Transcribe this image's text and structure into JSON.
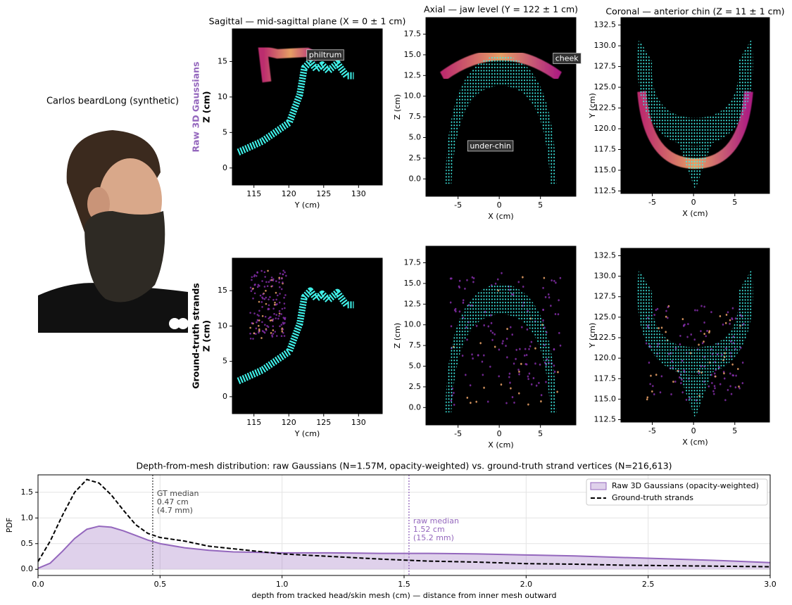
{
  "caption": "Carlos beardLong (synthetic)",
  "chart_data": [
    {
      "type": "density",
      "title": "Sagittal — mid-sagittal plane (X = 0 ± 1 cm)",
      "row_label": "Raw 3D Gaussians",
      "row_color": "#9467bd",
      "xlabel": "Y (cm)",
      "ylabel": "Z (cm)",
      "xlim": [
        111.9,
        133.4
      ],
      "ylim": [
        -2.4,
        19.6
      ],
      "xticks": [
        115,
        120,
        125,
        130
      ],
      "yticks": [
        0,
        5,
        10,
        15
      ],
      "annotations": [
        "philtrum"
      ]
    },
    {
      "type": "density",
      "title": "Axial — jaw level (Y = 122 ± 1 cm)",
      "xlabel": "X (cm)",
      "ylabel": "Z (cm)",
      "xlim": [
        -8.9,
        9.3
      ],
      "ylim": [
        -2.1,
        19.5
      ],
      "xticks": [
        -5,
        0,
        5
      ],
      "yticks": [
        {
          "value": 0,
          "label": "0.0"
        },
        2.5,
        {
          "value": 5,
          "label": "5.0"
        },
        7.5,
        {
          "value": 10,
          "label": "10.0"
        },
        12.5,
        {
          "value": 15,
          "label": "15.0"
        },
        17.5
      ],
      "annotations": [
        "cheek",
        "under-chin"
      ]
    },
    {
      "type": "density",
      "title": "Coronal — anterior chin (Z = 11 ± 1 cm)",
      "xlabel": "X (cm)",
      "ylabel": "Y (cm)",
      "xlim": [
        -8.8,
        9.2
      ],
      "ylim": [
        112.2,
        133.4
      ],
      "xticks": [
        -5,
        0,
        5
      ],
      "yticks": [
        112.5,
        {
          "value": 115,
          "label": "115.0"
        },
        117.5,
        {
          "value": 120,
          "label": "120.0"
        },
        122.5,
        {
          "value": 125,
          "label": "125.0"
        },
        127.5,
        {
          "value": 130,
          "label": "130.0"
        },
        132.5
      ]
    },
    {
      "type": "density",
      "row_label": "Ground-truth strands",
      "row_color": "#000000",
      "xlabel": "Y (cm)",
      "ylabel": "Z (cm)",
      "xlim": [
        111.9,
        133.4
      ],
      "ylim": [
        -2.4,
        19.6
      ],
      "xticks": [
        115,
        120,
        125,
        130
      ],
      "yticks": [
        0,
        5,
        10,
        15
      ]
    },
    {
      "type": "density",
      "xlabel": "X (cm)",
      "ylabel": "Z (cm)",
      "xlim": [
        -8.9,
        9.3
      ],
      "ylim": [
        -2.1,
        19.5
      ],
      "xticks": [
        -5,
        0,
        5
      ],
      "yticks": [
        {
          "value": 0,
          "label": "0.0"
        },
        2.5,
        {
          "value": 5,
          "label": "5.0"
        },
        7.5,
        {
          "value": 10,
          "label": "10.0"
        },
        12.5,
        {
          "value": 15,
          "label": "15.0"
        },
        17.5
      ]
    },
    {
      "type": "density",
      "xlabel": "X (cm)",
      "ylabel": "Y (cm)",
      "xlim": [
        -8.8,
        9.2
      ],
      "ylim": [
        112.2,
        133.4
      ],
      "xticks": [
        -5,
        0,
        5
      ],
      "yticks": [
        112.5,
        {
          "value": 115,
          "label": "115.0"
        },
        117.5,
        {
          "value": 120,
          "label": "120.0"
        },
        122.5,
        {
          "value": 125,
          "label": "125.0"
        },
        127.5,
        {
          "value": 130,
          "label": "130.0"
        },
        132.5
      ]
    },
    {
      "type": "line",
      "title": "Depth-from-mesh distribution: raw Gaussians (N=1.57M, opacity-weighted) vs. ground-truth strand vertices (N=216,613)",
      "xlabel": "depth from tracked head/skin mesh (cm)   —   distance from inner mesh outward",
      "ylabel": "PDF",
      "xlim": [
        0,
        3
      ],
      "ylim": [
        -0.12,
        1.84
      ],
      "xticks": [
        {
          "value": 0,
          "label": "0.0"
        },
        0.5,
        {
          "value": 1,
          "label": "1.0"
        },
        1.5,
        {
          "value": 2,
          "label": "2.0"
        },
        2.5,
        {
          "value": 3,
          "label": "3.0"
        }
      ],
      "yticks": [
        {
          "value": 0,
          "label": "0.0"
        },
        0.5,
        {
          "value": 1,
          "label": "1.0"
        },
        1.5
      ],
      "grid": true,
      "legend": "upper right",
      "x": [
        0,
        0.05,
        0.1,
        0.15,
        0.2,
        0.25,
        0.3,
        0.35,
        0.4,
        0.45,
        0.5,
        0.6,
        0.7,
        0.8,
        0.9,
        1.0,
        1.2,
        1.4,
        1.6,
        1.8,
        2.0,
        2.2,
        2.4,
        2.6,
        2.8,
        3.0
      ],
      "series": [
        {
          "name": "Raw 3D Gaussians (opacity-weighted)",
          "color": "#9467bd",
          "fill": true,
          "values": [
            0.02,
            0.12,
            0.35,
            0.6,
            0.78,
            0.84,
            0.82,
            0.75,
            0.66,
            0.57,
            0.5,
            0.42,
            0.37,
            0.34,
            0.33,
            0.32,
            0.32,
            0.31,
            0.31,
            0.3,
            0.28,
            0.26,
            0.23,
            0.2,
            0.17,
            0.13
          ]
        },
        {
          "name": "Ground-truth strands",
          "color": "#000000",
          "dashed": true,
          "values": [
            0.15,
            0.55,
            1.05,
            1.5,
            1.75,
            1.68,
            1.45,
            1.15,
            0.87,
            0.7,
            0.62,
            0.55,
            0.45,
            0.4,
            0.35,
            0.3,
            0.25,
            0.2,
            0.16,
            0.14,
            0.11,
            0.1,
            0.08,
            0.07,
            0.06,
            0.05
          ]
        }
      ],
      "vlines": [
        {
          "x": 0.47,
          "color": "#444444",
          "text": [
            "GT median",
            "0.47 cm",
            "(4.7 mm)"
          ]
        },
        {
          "x": 1.52,
          "color": "#9467bd",
          "text": [
            "raw median",
            "1.52 cm",
            "(15.2 mm)"
          ]
        }
      ]
    }
  ]
}
